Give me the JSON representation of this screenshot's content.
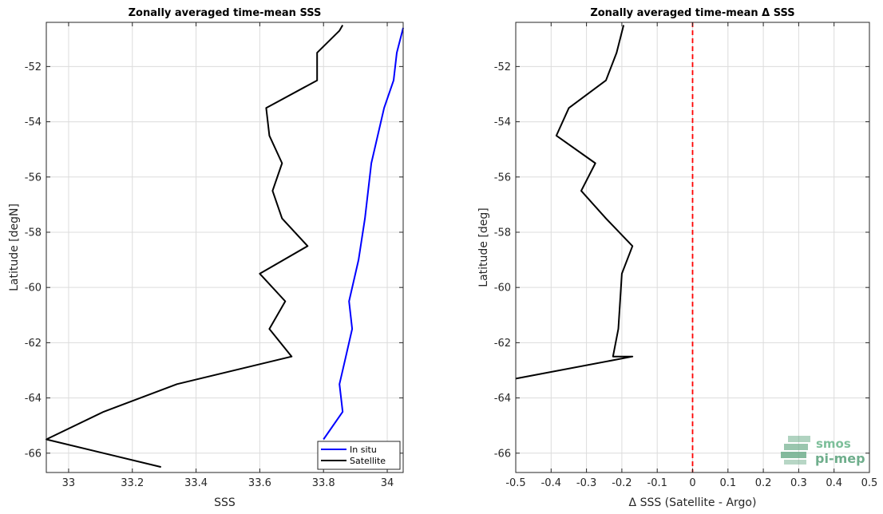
{
  "chart_data": [
    {
      "type": "line",
      "title": "Zonally averaged time-mean SSS",
      "xlabel": "SSS",
      "ylabel": "Latitude [degN]",
      "xlim": [
        32.93,
        34.05
      ],
      "ylim": [
        -66.7,
        -50.4
      ],
      "xticks": [
        33,
        33.2,
        33.4,
        33.6,
        33.8,
        34
      ],
      "xtick_labels": [
        "33",
        "33.2",
        "33.4",
        "33.6",
        "33.8",
        "34"
      ],
      "yticks": [
        -66,
        -64,
        -62,
        -60,
        -58,
        -56,
        -54,
        -52
      ],
      "ytick_labels": [
        "-66",
        "-64",
        "-62",
        "-60",
        "-58",
        "-56",
        "-54",
        "-52"
      ],
      "grid": true,
      "legend_position": "bottom-right",
      "series": [
        {
          "name": "In situ",
          "color": "#0000ff",
          "x": [
            34.05,
            34.03,
            34.02,
            33.99,
            33.95,
            33.94,
            33.93,
            33.91,
            33.88,
            33.89,
            33.87,
            33.85,
            33.86,
            33.8
          ],
          "y": [
            -50.6,
            -51.5,
            -52.5,
            -53.5,
            -55.5,
            -56.5,
            -57.5,
            -59.0,
            -60.5,
            -61.5,
            -62.5,
            -63.5,
            -64.5,
            -65.5
          ]
        },
        {
          "name": "Satellite",
          "color": "#000000",
          "x": [
            33.86,
            33.85,
            33.78,
            33.78,
            33.62,
            33.63,
            33.67,
            33.64,
            33.67,
            33.75,
            33.6,
            33.68,
            33.63,
            33.7,
            33.34,
            33.11,
            32.93,
            33.29
          ],
          "y": [
            -50.5,
            -50.7,
            -51.5,
            -52.5,
            -53.5,
            -54.5,
            -55.5,
            -56.5,
            -57.5,
            -58.5,
            -59.5,
            -60.5,
            -61.5,
            -62.5,
            -63.5,
            -64.5,
            -65.5,
            -66.5
          ]
        }
      ]
    },
    {
      "type": "line",
      "title": "Zonally averaged time-mean Δ SSS",
      "xlabel": "Δ SSS (Satellite - Argo)",
      "ylabel": "Latitude [deg]",
      "xlim": [
        -0.5,
        0.5
      ],
      "ylim": [
        -66.7,
        -50.4
      ],
      "xticks": [
        -0.5,
        -0.4,
        -0.3,
        -0.2,
        -0.1,
        0,
        0.1,
        0.2,
        0.3,
        0.4,
        0.5
      ],
      "xtick_labels": [
        "-0.5",
        "-0.4",
        "-0.3",
        "-0.2",
        "-0.1",
        "0",
        "0.1",
        "0.2",
        "0.3",
        "0.4",
        "0.5"
      ],
      "yticks": [
        -66,
        -64,
        -62,
        -60,
        -58,
        -56,
        -54,
        -52
      ],
      "ytick_labels": [
        "-66",
        "-64",
        "-62",
        "-60",
        "-58",
        "-56",
        "-54",
        "-52"
      ],
      "grid": true,
      "reference_line": {
        "x": 0,
        "color": "#ff0000",
        "style": "dashed"
      },
      "series": [
        {
          "color": "#000000",
          "x": [
            -0.195,
            -0.215,
            -0.245,
            -0.35,
            -0.385,
            -0.275,
            -0.315,
            -0.245,
            -0.17,
            -0.2,
            -0.205,
            -0.21,
            -0.225,
            -0.17,
            -0.5
          ],
          "y": [
            -50.5,
            -51.5,
            -52.5,
            -53.5,
            -54.5,
            -55.5,
            -56.5,
            -57.5,
            -58.5,
            -59.5,
            -60.5,
            -61.5,
            -62.5,
            -62.5,
            -63.3
          ]
        }
      ]
    }
  ],
  "watermark": {
    "line1": "smos",
    "line2": "pi-mep",
    "color": "#6fae8c"
  }
}
